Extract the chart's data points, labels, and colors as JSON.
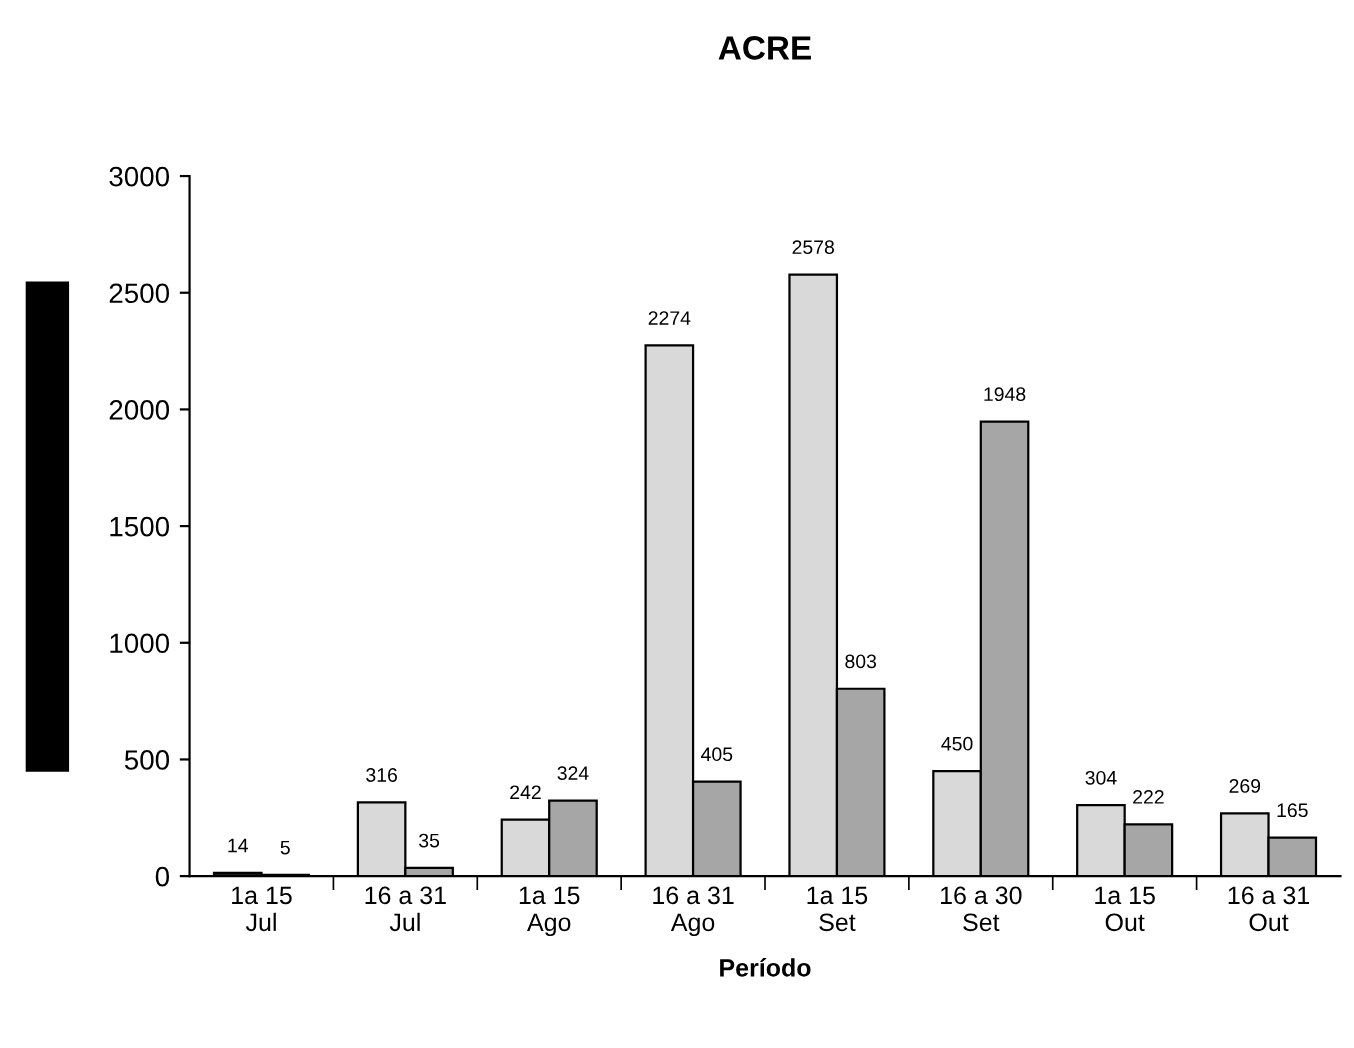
{
  "chart_data": {
    "type": "bar",
    "title": "ACRE",
    "xlabel": "Período",
    "categories": [
      "1a 15\nJul",
      "16 a 31\nJul",
      "1a 15\nAgo",
      "16 a 31\nAgo",
      "1a 15\nSet",
      "16 a 30\nSet",
      "1a 15\nOut",
      "16 a 31\nOut"
    ],
    "series": [
      {
        "color": "#d9d9d9",
        "colors": [
          "#1a1a1a",
          "#d9d9d9",
          "#d9d9d9",
          "#d9d9d9",
          "#d9d9d9",
          "#d9d9d9",
          "#d9d9d9",
          "#d9d9d9"
        ],
        "values": [
          14,
          316,
          242,
          2274,
          2578,
          450,
          304,
          269
        ]
      },
      {
        "color": "#a6a6a6",
        "values": [
          5,
          35,
          324,
          405,
          803,
          1948,
          222,
          165
        ]
      }
    ],
    "ylim": [
      0,
      3000
    ],
    "yticks": [
      0,
      500,
      1000,
      1500,
      2000,
      2500,
      3000
    ],
    "data_labels": true,
    "grid": false,
    "legend": false
  }
}
